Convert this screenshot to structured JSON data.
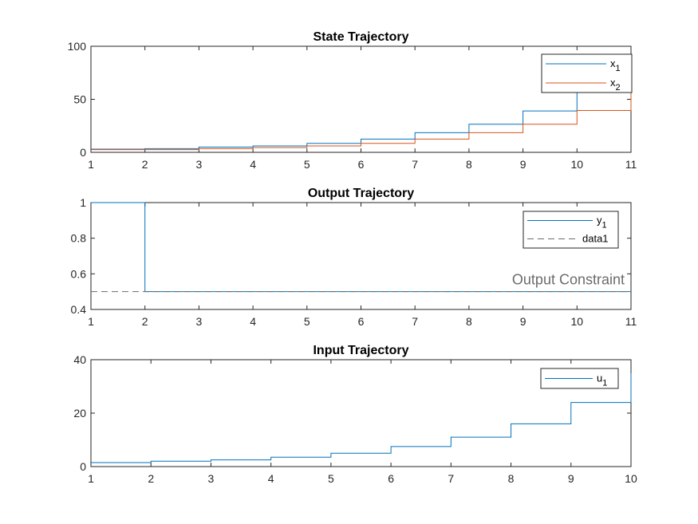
{
  "colors": {
    "blue": "#0072BD",
    "orange": "#D95319",
    "gray": "#6b6b6b",
    "axis": "#262626"
  },
  "chart_data": [
    {
      "type": "line",
      "style": "stairs",
      "title": "State Trajectory",
      "xlabel": "",
      "ylabel": "",
      "xlim": [
        1,
        11
      ],
      "ylim": [
        0,
        100
      ],
      "xticks": [
        "1",
        "2",
        "3",
        "4",
        "5",
        "6",
        "7",
        "8",
        "9",
        "10",
        "11"
      ],
      "yticks": [
        "0",
        "50",
        "100"
      ],
      "grid": false,
      "legend_position": "top-right",
      "x": [
        1,
        2,
        3,
        4,
        5,
        6,
        7,
        8,
        9,
        10,
        11
      ],
      "series": [
        {
          "name": "x",
          "sub": "1",
          "color": "#0072BD",
          "dash": false,
          "values": [
            3,
            3.5,
            5,
            6,
            8.5,
            12.5,
            18.5,
            26.5,
            39,
            58.5,
            87
          ]
        },
        {
          "name": "x",
          "sub": "2",
          "color": "#D95319",
          "dash": false,
          "values": [
            2.5,
            2.5,
            3.5,
            4.5,
            6,
            8.5,
            12.5,
            18.5,
            26.5,
            39.5,
            59
          ]
        }
      ]
    },
    {
      "type": "line",
      "style": "stairs",
      "title": "Output Trajectory",
      "xlabel": "",
      "ylabel": "",
      "xlim": [
        1,
        11
      ],
      "ylim": [
        0.4,
        1
      ],
      "xticks": [
        "1",
        "2",
        "3",
        "4",
        "5",
        "6",
        "7",
        "8",
        "9",
        "10",
        "11"
      ],
      "yticks": [
        "0.4",
        "0.6",
        "0.8",
        "1"
      ],
      "grid": false,
      "legend_position": "top-right",
      "annotation": "Output Constraint",
      "x": [
        1,
        2,
        3,
        4,
        5,
        6,
        7,
        8,
        9,
        10,
        11
      ],
      "series": [
        {
          "name": "y",
          "sub": "1",
          "color": "#0072BD",
          "dash": false,
          "values": [
            1,
            0.5,
            0.5,
            0.5,
            0.5,
            0.5,
            0.5,
            0.5,
            0.5,
            0.5,
            0.5
          ]
        },
        {
          "name": "data1",
          "sub": "",
          "color": "#6b6b6b",
          "dash": true,
          "values": [
            0.5,
            0.5,
            0.5,
            0.5,
            0.5,
            0.5,
            0.5,
            0.5,
            0.5,
            0.5,
            0.5
          ]
        }
      ]
    },
    {
      "type": "line",
      "style": "stairs",
      "title": "Input Trajectory",
      "xlabel": "",
      "ylabel": "",
      "xlim": [
        1,
        10
      ],
      "ylim": [
        0,
        40
      ],
      "xticks": [
        "1",
        "2",
        "3",
        "4",
        "5",
        "6",
        "7",
        "8",
        "9",
        "10"
      ],
      "yticks": [
        "0",
        "20",
        "40"
      ],
      "grid": false,
      "legend_position": "top-right",
      "x": [
        1,
        2,
        3,
        4,
        5,
        6,
        7,
        8,
        9,
        10
      ],
      "series": [
        {
          "name": "u",
          "sub": "1",
          "color": "#0072BD",
          "dash": false,
          "values": [
            1.5,
            2,
            2.5,
            3.5,
            5,
            7.5,
            11,
            16,
            24,
            35
          ]
        }
      ]
    }
  ]
}
